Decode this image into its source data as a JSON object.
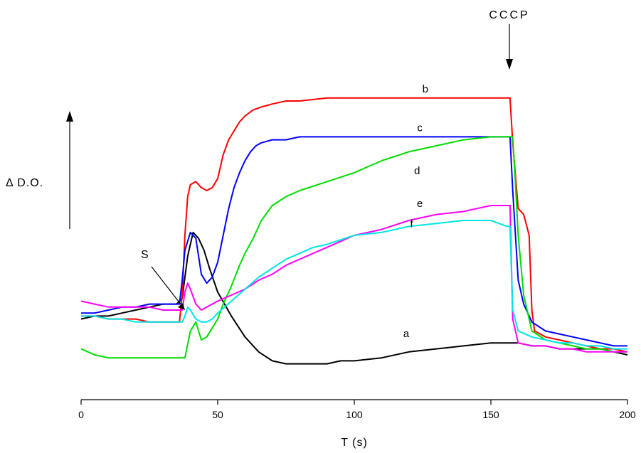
{
  "chart_data": {
    "type": "line",
    "xlabel": "T (s)",
    "ylabel": "Δ D.O.",
    "xlim": [
      0,
      200
    ],
    "xticks": [
      0,
      50,
      100,
      150,
      200
    ],
    "ylim": [
      0,
      1
    ],
    "y_ticks_shown": false,
    "grid": false,
    "legend": "none (curves labeled inline)",
    "annotations": [
      {
        "text": "S",
        "x": 37,
        "y": 0.23
      },
      {
        "text": "CCCP",
        "x": 157,
        "y": 0.93
      }
    ],
    "series": [
      {
        "name": "a",
        "color": "#000000",
        "x": [
          0,
          5,
          10,
          15,
          20,
          25,
          30,
          35,
          37,
          39,
          41,
          43,
          45,
          47,
          50,
          55,
          60,
          65,
          70,
          75,
          80,
          85,
          90,
          95,
          100,
          110,
          120,
          130,
          140,
          150,
          155,
          160,
          165,
          170,
          175,
          180,
          185,
          190,
          195,
          200
        ],
        "y": [
          0.17,
          0.18,
          0.18,
          0.19,
          0.2,
          0.21,
          0.22,
          0.22,
          0.24,
          0.38,
          0.46,
          0.44,
          0.4,
          0.34,
          0.26,
          0.18,
          0.11,
          0.06,
          0.03,
          0.02,
          0.02,
          0.02,
          0.02,
          0.03,
          0.03,
          0.04,
          0.06,
          0.07,
          0.08,
          0.09,
          0.09,
          0.09,
          0.08,
          0.08,
          0.07,
          0.07,
          0.07,
          0.07,
          0.06,
          0.05
        ]
      },
      {
        "name": "b",
        "color": "#ff0000",
        "x": [
          0,
          5,
          10,
          15,
          20,
          25,
          30,
          35,
          36,
          37,
          38,
          39,
          40,
          42,
          44,
          46,
          48,
          50,
          52,
          54,
          56,
          58,
          60,
          63,
          66,
          70,
          75,
          80,
          90,
          100,
          110,
          120,
          130,
          140,
          150,
          156,
          157,
          158,
          160,
          162,
          164,
          165,
          166,
          170,
          175,
          180,
          185,
          190,
          195,
          200
        ],
        "y": [
          0.18,
          0.18,
          0.17,
          0.17,
          0.17,
          0.16,
          0.16,
          0.16,
          0.16,
          0.25,
          0.45,
          0.58,
          0.62,
          0.63,
          0.61,
          0.6,
          0.61,
          0.64,
          0.72,
          0.77,
          0.8,
          0.83,
          0.85,
          0.87,
          0.88,
          0.89,
          0.9,
          0.9,
          0.91,
          0.91,
          0.91,
          0.91,
          0.91,
          0.91,
          0.91,
          0.91,
          0.91,
          0.76,
          0.54,
          0.52,
          0.45,
          0.2,
          0.13,
          0.11,
          0.1,
          0.09,
          0.08,
          0.07,
          0.07,
          0.06
        ]
      },
      {
        "name": "c",
        "color": "#0000ff",
        "x": [
          0,
          5,
          10,
          15,
          20,
          25,
          30,
          35,
          36,
          37,
          38,
          40,
          42,
          44,
          46,
          48,
          50,
          52,
          54,
          56,
          58,
          60,
          62,
          64,
          66,
          70,
          75,
          80,
          90,
          100,
          110,
          120,
          130,
          140,
          150,
          156,
          157,
          158,
          160,
          162,
          165,
          170,
          175,
          180,
          185,
          190,
          195,
          200
        ],
        "y": [
          0.19,
          0.19,
          0.2,
          0.21,
          0.21,
          0.22,
          0.22,
          0.22,
          0.22,
          0.3,
          0.4,
          0.46,
          0.44,
          0.32,
          0.29,
          0.31,
          0.36,
          0.45,
          0.54,
          0.61,
          0.66,
          0.7,
          0.73,
          0.75,
          0.76,
          0.77,
          0.77,
          0.78,
          0.78,
          0.78,
          0.78,
          0.78,
          0.78,
          0.78,
          0.78,
          0.78,
          0.78,
          0.6,
          0.3,
          0.22,
          0.16,
          0.13,
          0.12,
          0.11,
          0.1,
          0.09,
          0.08,
          0.08
        ]
      },
      {
        "name": "d",
        "color": "#00dd00",
        "x": [
          0,
          5,
          10,
          15,
          20,
          25,
          30,
          35,
          38,
          40,
          42,
          44,
          46,
          48,
          50,
          52,
          55,
          58,
          60,
          63,
          66,
          70,
          75,
          80,
          90,
          100,
          110,
          120,
          130,
          140,
          150,
          157,
          158,
          159,
          160,
          162,
          165,
          170,
          175,
          180,
          185,
          190,
          195,
          200
        ],
        "y": [
          0.07,
          0.05,
          0.04,
          0.04,
          0.04,
          0.04,
          0.04,
          0.04,
          0.04,
          0.13,
          0.16,
          0.1,
          0.11,
          0.14,
          0.17,
          0.22,
          0.28,
          0.35,
          0.39,
          0.44,
          0.5,
          0.55,
          0.58,
          0.6,
          0.63,
          0.66,
          0.7,
          0.73,
          0.75,
          0.77,
          0.78,
          0.78,
          0.78,
          0.62,
          0.45,
          0.25,
          0.13,
          0.1,
          0.09,
          0.08,
          0.07,
          0.07,
          0.06,
          0.06
        ]
      },
      {
        "name": "e",
        "color": "#ff00ff",
        "x": [
          0,
          5,
          10,
          15,
          20,
          25,
          30,
          35,
          37,
          38,
          39,
          40,
          42,
          44,
          46,
          48,
          50,
          55,
          60,
          65,
          70,
          75,
          80,
          85,
          90,
          100,
          110,
          120,
          130,
          140,
          150,
          156,
          157,
          158,
          160,
          165,
          170,
          175,
          180,
          185,
          190,
          195,
          200
        ],
        "y": [
          0.23,
          0.22,
          0.21,
          0.21,
          0.21,
          0.21,
          0.2,
          0.2,
          0.2,
          0.26,
          0.29,
          0.27,
          0.22,
          0.2,
          0.21,
          0.22,
          0.23,
          0.25,
          0.27,
          0.3,
          0.32,
          0.35,
          0.37,
          0.39,
          0.41,
          0.45,
          0.47,
          0.5,
          0.52,
          0.53,
          0.55,
          0.55,
          0.55,
          0.17,
          0.09,
          0.08,
          0.08,
          0.07,
          0.07,
          0.06,
          0.06,
          0.06,
          0.06
        ]
      },
      {
        "name": "f",
        "color": "#00e5e5",
        "x": [
          0,
          5,
          10,
          15,
          20,
          25,
          30,
          35,
          37,
          38,
          39,
          40,
          42,
          44,
          46,
          48,
          50,
          55,
          60,
          65,
          70,
          75,
          80,
          85,
          90,
          100,
          110,
          120,
          130,
          140,
          150,
          156,
          157,
          158,
          160,
          165,
          170,
          175,
          180,
          185,
          190,
          195,
          200
        ],
        "y": [
          0.18,
          0.18,
          0.17,
          0.17,
          0.16,
          0.16,
          0.16,
          0.16,
          0.16,
          0.18,
          0.21,
          0.2,
          0.17,
          0.16,
          0.16,
          0.17,
          0.19,
          0.23,
          0.27,
          0.31,
          0.34,
          0.37,
          0.39,
          0.41,
          0.42,
          0.45,
          0.46,
          0.48,
          0.49,
          0.5,
          0.5,
          0.48,
          0.48,
          0.2,
          0.13,
          0.11,
          0.1,
          0.09,
          0.09,
          0.08,
          0.08,
          0.07,
          0.07
        ]
      }
    ]
  }
}
